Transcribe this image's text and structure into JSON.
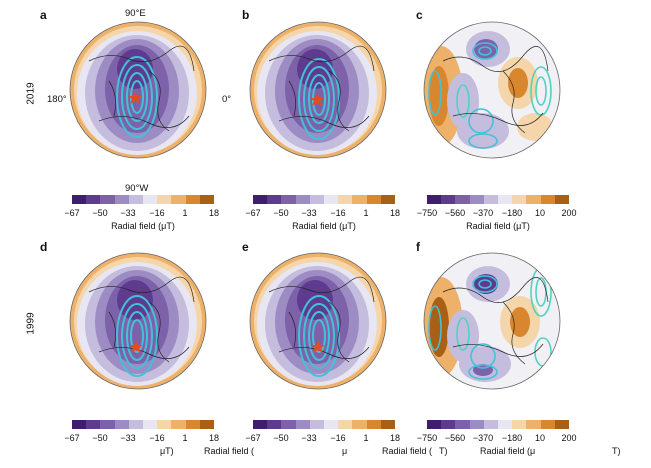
{
  "panels": {
    "a": "a",
    "b": "b",
    "c": "c",
    "d": "d",
    "e": "e",
    "f": "f"
  },
  "rows": {
    "top": "2019",
    "bottom": "1999"
  },
  "compass": {
    "top": "90°E",
    "bottom": "90°W",
    "left": "180°",
    "right": "0°"
  },
  "colorbar_small": {
    "ticks": [
      "−67",
      "−50",
      "−33",
      "−16",
      "1",
      "18"
    ],
    "label": "Radial field (μT)",
    "colors": [
      "#3e1f6e",
      "#5e3b8f",
      "#7d62aa",
      "#9d8cc4",
      "#c4bddd",
      "#e8e6f2",
      "#f5d6aa",
      "#eeb169",
      "#d8872e",
      "#a85f16"
    ]
  },
  "colorbar_large": {
    "ticks": [
      "−750",
      "−560",
      "−370",
      "−180",
      "10",
      "200"
    ],
    "label": "Radial field (μT)"
  },
  "bottom_fragments": {
    "d_label": "μT)",
    "e_label_a": "Radial field (",
    "e_label_b": "μ",
    "f_label_a": "Radial field (",
    "f_label_b": "T)",
    "f_label_c": "Radial field (μ",
    "f_label_d": "T)"
  }
}
